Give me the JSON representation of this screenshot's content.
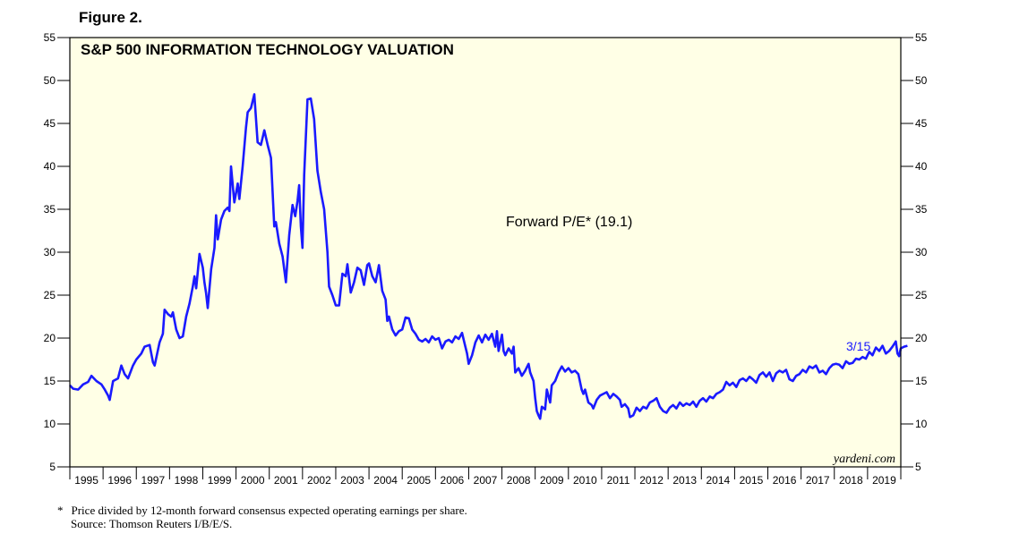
{
  "figure_label": "Figure 2.",
  "footnote": {
    "star": "*",
    "text": "Price divided by 12-month forward consensus expected operating earnings per share.",
    "source": "Source: Thomson Reuters I/B/E/S."
  },
  "colors": {
    "plot_bg": "#ffffe6",
    "line": "#1a1aff",
    "axis": "#000000"
  },
  "chart_data": {
    "type": "line",
    "title": "S&P 500 INFORMATION TECHNOLOGY VALUATION",
    "series_label": "Forward P/E* (19.1)",
    "end_label": "3/15",
    "watermark": "yardeni.com",
    "ylim": [
      5,
      55
    ],
    "yticks": [
      "5",
      "10",
      "15",
      "20",
      "25",
      "30",
      "35",
      "40",
      "45",
      "50",
      "55"
    ],
    "xlim": [
      1995,
      2020
    ],
    "xlabels": [
      "1995",
      "1996",
      "1997",
      "1998",
      "1999",
      "2000",
      "2001",
      "2002",
      "2003",
      "2004",
      "2005",
      "2006",
      "2007",
      "2008",
      "2009",
      "2010",
      "2011",
      "2012",
      "2013",
      "2014",
      "2015",
      "2016",
      "2017",
      "2018",
      "2019"
    ],
    "series": [
      {
        "name": "Forward P/E",
        "points": [
          [
            1995.0,
            14.5
          ],
          [
            1995.1,
            14.1
          ],
          [
            1995.25,
            14.0
          ],
          [
            1995.4,
            14.6
          ],
          [
            1995.55,
            14.9
          ],
          [
            1995.65,
            15.6
          ],
          [
            1995.8,
            15.0
          ],
          [
            1995.95,
            14.6
          ],
          [
            1996.05,
            14.0
          ],
          [
            1996.15,
            13.3
          ],
          [
            1996.2,
            12.8
          ],
          [
            1996.3,
            15.0
          ],
          [
            1996.45,
            15.3
          ],
          [
            1996.55,
            16.8
          ],
          [
            1996.65,
            15.8
          ],
          [
            1996.75,
            15.3
          ],
          [
            1996.9,
            16.8
          ],
          [
            1997.0,
            17.5
          ],
          [
            1997.15,
            18.2
          ],
          [
            1997.25,
            19.0
          ],
          [
            1997.4,
            19.2
          ],
          [
            1997.5,
            17.2
          ],
          [
            1997.55,
            16.8
          ],
          [
            1997.7,
            19.5
          ],
          [
            1997.8,
            20.5
          ],
          [
            1997.85,
            23.3
          ],
          [
            1997.95,
            22.8
          ],
          [
            1998.05,
            22.5
          ],
          [
            1998.1,
            23.0
          ],
          [
            1998.2,
            21.0
          ],
          [
            1998.3,
            20.0
          ],
          [
            1998.4,
            20.2
          ],
          [
            1998.5,
            22.5
          ],
          [
            1998.6,
            24.0
          ],
          [
            1998.7,
            26.0
          ],
          [
            1998.75,
            27.2
          ],
          [
            1998.8,
            25.8
          ],
          [
            1998.9,
            29.8
          ],
          [
            1999.0,
            28.2
          ],
          [
            1999.05,
            26.5
          ],
          [
            1999.1,
            25.2
          ],
          [
            1999.15,
            23.5
          ],
          [
            1999.25,
            28.0
          ],
          [
            1999.35,
            30.5
          ],
          [
            1999.4,
            34.3
          ],
          [
            1999.45,
            31.5
          ],
          [
            1999.55,
            33.8
          ],
          [
            1999.65,
            34.8
          ],
          [
            1999.75,
            35.2
          ],
          [
            1999.8,
            34.8
          ],
          [
            1999.85,
            40.0
          ],
          [
            1999.95,
            35.8
          ],
          [
            2000.05,
            38.0
          ],
          [
            2000.1,
            36.2
          ],
          [
            2000.2,
            40.0
          ],
          [
            2000.3,
            44.5
          ],
          [
            2000.35,
            46.3
          ],
          [
            2000.45,
            46.8
          ],
          [
            2000.55,
            48.4
          ],
          [
            2000.65,
            42.8
          ],
          [
            2000.75,
            42.5
          ],
          [
            2000.85,
            44.2
          ],
          [
            2000.95,
            42.5
          ],
          [
            2001.05,
            41.0
          ],
          [
            2001.15,
            33.0
          ],
          [
            2001.2,
            33.5
          ],
          [
            2001.3,
            31.0
          ],
          [
            2001.4,
            29.5
          ],
          [
            2001.5,
            26.5
          ],
          [
            2001.6,
            32.0
          ],
          [
            2001.7,
            35.5
          ],
          [
            2001.78,
            34.2
          ],
          [
            2001.85,
            36.0
          ],
          [
            2001.9,
            37.8
          ],
          [
            2001.95,
            33.0
          ],
          [
            2002.0,
            30.5
          ],
          [
            2002.05,
            39.0
          ],
          [
            2002.15,
            47.8
          ],
          [
            2002.25,
            47.9
          ],
          [
            2002.35,
            45.5
          ],
          [
            2002.45,
            39.5
          ],
          [
            2002.55,
            37.0
          ],
          [
            2002.65,
            35.0
          ],
          [
            2002.75,
            30.0
          ],
          [
            2002.8,
            26.0
          ],
          [
            2002.9,
            25.0
          ],
          [
            2003.0,
            23.8
          ],
          [
            2003.1,
            23.8
          ],
          [
            2003.2,
            27.5
          ],
          [
            2003.3,
            27.2
          ],
          [
            2003.35,
            28.6
          ],
          [
            2003.45,
            25.3
          ],
          [
            2003.55,
            26.5
          ],
          [
            2003.65,
            28.2
          ],
          [
            2003.75,
            27.9
          ],
          [
            2003.85,
            26.2
          ],
          [
            2003.95,
            28.5
          ],
          [
            2004.0,
            28.7
          ],
          [
            2004.1,
            27.2
          ],
          [
            2004.2,
            26.5
          ],
          [
            2004.3,
            28.5
          ],
          [
            2004.4,
            25.5
          ],
          [
            2004.5,
            24.5
          ],
          [
            2004.55,
            22.0
          ],
          [
            2004.6,
            22.5
          ],
          [
            2004.7,
            21.0
          ],
          [
            2004.8,
            20.3
          ],
          [
            2004.9,
            20.8
          ],
          [
            2005.0,
            21.0
          ],
          [
            2005.1,
            22.4
          ],
          [
            2005.2,
            22.3
          ],
          [
            2005.3,
            21.0
          ],
          [
            2005.4,
            20.5
          ],
          [
            2005.5,
            19.8
          ],
          [
            2005.6,
            19.6
          ],
          [
            2005.7,
            19.9
          ],
          [
            2005.8,
            19.5
          ],
          [
            2005.9,
            20.2
          ],
          [
            2006.0,
            19.8
          ],
          [
            2006.1,
            20.0
          ],
          [
            2006.2,
            18.8
          ],
          [
            2006.3,
            19.6
          ],
          [
            2006.4,
            19.8
          ],
          [
            2006.5,
            19.5
          ],
          [
            2006.6,
            20.2
          ],
          [
            2006.7,
            19.9
          ],
          [
            2006.8,
            20.6
          ],
          [
            2006.9,
            19.0
          ],
          [
            2006.95,
            18.2
          ],
          [
            2007.0,
            17.0
          ],
          [
            2007.1,
            18.0
          ],
          [
            2007.2,
            19.5
          ],
          [
            2007.3,
            20.3
          ],
          [
            2007.4,
            19.5
          ],
          [
            2007.5,
            20.4
          ],
          [
            2007.6,
            19.8
          ],
          [
            2007.7,
            20.5
          ],
          [
            2007.8,
            19.0
          ],
          [
            2007.85,
            20.8
          ],
          [
            2007.9,
            18.5
          ],
          [
            2007.95,
            19.5
          ],
          [
            2008.0,
            20.4
          ],
          [
            2008.05,
            18.5
          ],
          [
            2008.1,
            18.0
          ],
          [
            2008.2,
            18.8
          ],
          [
            2008.3,
            18.2
          ],
          [
            2008.35,
            19.0
          ],
          [
            2008.4,
            16.0
          ],
          [
            2008.5,
            16.5
          ],
          [
            2008.6,
            15.6
          ],
          [
            2008.7,
            16.2
          ],
          [
            2008.8,
            17.0
          ],
          [
            2008.85,
            16.0
          ],
          [
            2008.95,
            15.0
          ],
          [
            2009.0,
            13.0
          ],
          [
            2009.05,
            11.5
          ],
          [
            2009.1,
            11.0
          ],
          [
            2009.15,
            10.6
          ],
          [
            2009.2,
            12.0
          ],
          [
            2009.3,
            11.7
          ],
          [
            2009.35,
            14.0
          ],
          [
            2009.45,
            12.5
          ],
          [
            2009.5,
            14.5
          ],
          [
            2009.6,
            15.0
          ],
          [
            2009.7,
            16.0
          ],
          [
            2009.8,
            16.7
          ],
          [
            2009.9,
            16.1
          ],
          [
            2010.0,
            16.5
          ],
          [
            2010.1,
            16.0
          ],
          [
            2010.2,
            16.2
          ],
          [
            2010.3,
            15.8
          ],
          [
            2010.4,
            14.0
          ],
          [
            2010.45,
            13.5
          ],
          [
            2010.5,
            14.0
          ],
          [
            2010.6,
            12.5
          ],
          [
            2010.7,
            12.2
          ],
          [
            2010.75,
            11.8
          ],
          [
            2010.85,
            12.8
          ],
          [
            2010.95,
            13.3
          ],
          [
            2011.05,
            13.5
          ],
          [
            2011.15,
            13.7
          ],
          [
            2011.25,
            13.0
          ],
          [
            2011.35,
            13.5
          ],
          [
            2011.45,
            13.2
          ],
          [
            2011.55,
            12.8
          ],
          [
            2011.6,
            12.0
          ],
          [
            2011.7,
            12.3
          ],
          [
            2011.8,
            11.8
          ],
          [
            2011.85,
            10.8
          ],
          [
            2011.95,
            11.0
          ],
          [
            2012.05,
            11.9
          ],
          [
            2012.15,
            11.5
          ],
          [
            2012.25,
            12.0
          ],
          [
            2012.35,
            11.8
          ],
          [
            2012.45,
            12.5
          ],
          [
            2012.55,
            12.7
          ],
          [
            2012.65,
            13.0
          ],
          [
            2012.75,
            12.0
          ],
          [
            2012.85,
            11.5
          ],
          [
            2012.95,
            11.3
          ],
          [
            2013.05,
            11.9
          ],
          [
            2013.15,
            12.2
          ],
          [
            2013.25,
            11.8
          ],
          [
            2013.35,
            12.5
          ],
          [
            2013.45,
            12.1
          ],
          [
            2013.55,
            12.4
          ],
          [
            2013.65,
            12.2
          ],
          [
            2013.75,
            12.6
          ],
          [
            2013.85,
            12.0
          ],
          [
            2013.95,
            12.7
          ],
          [
            2014.05,
            13.0
          ],
          [
            2014.15,
            12.6
          ],
          [
            2014.25,
            13.2
          ],
          [
            2014.35,
            13.0
          ],
          [
            2014.45,
            13.5
          ],
          [
            2014.55,
            13.7
          ],
          [
            2014.65,
            14.0
          ],
          [
            2014.75,
            14.9
          ],
          [
            2014.85,
            14.5
          ],
          [
            2014.95,
            14.8
          ],
          [
            2015.05,
            14.3
          ],
          [
            2015.15,
            15.1
          ],
          [
            2015.25,
            15.3
          ],
          [
            2015.35,
            15.0
          ],
          [
            2015.45,
            15.5
          ],
          [
            2015.55,
            15.2
          ],
          [
            2015.65,
            14.8
          ],
          [
            2015.75,
            15.7
          ],
          [
            2015.85,
            16.0
          ],
          [
            2015.95,
            15.5
          ],
          [
            2016.05,
            16.0
          ],
          [
            2016.15,
            15.0
          ],
          [
            2016.25,
            15.9
          ],
          [
            2016.35,
            16.2
          ],
          [
            2016.45,
            16.0
          ],
          [
            2016.55,
            16.3
          ],
          [
            2016.65,
            15.2
          ],
          [
            2016.75,
            15.0
          ],
          [
            2016.85,
            15.6
          ],
          [
            2016.95,
            15.8
          ],
          [
            2017.05,
            16.3
          ],
          [
            2017.15,
            16.0
          ],
          [
            2017.25,
            16.7
          ],
          [
            2017.35,
            16.5
          ],
          [
            2017.45,
            16.8
          ],
          [
            2017.55,
            16.0
          ],
          [
            2017.65,
            16.2
          ],
          [
            2017.75,
            15.8
          ],
          [
            2017.85,
            16.5
          ],
          [
            2017.95,
            16.9
          ],
          [
            2018.05,
            17.0
          ],
          [
            2018.15,
            16.9
          ],
          [
            2018.25,
            16.5
          ],
          [
            2018.35,
            17.3
          ],
          [
            2018.45,
            17.0
          ],
          [
            2018.55,
            17.1
          ],
          [
            2018.65,
            17.6
          ],
          [
            2018.75,
            17.5
          ],
          [
            2018.85,
            17.8
          ],
          [
            2018.95,
            17.6
          ],
          [
            2019.05,
            18.4
          ],
          [
            2019.15,
            18.0
          ],
          [
            2019.25,
            18.9
          ],
          [
            2019.35,
            18.5
          ],
          [
            2019.45,
            19.1
          ],
          [
            2019.55,
            18.2
          ],
          [
            2019.65,
            18.5
          ],
          [
            2019.75,
            19.0
          ],
          [
            2019.85,
            19.6
          ],
          [
            2019.9,
            18.2
          ],
          [
            2019.95,
            17.9
          ],
          [
            2020.0,
            18.8
          ],
          [
            2020.1,
            19.0
          ],
          [
            2020.2,
            19.1
          ]
        ]
      }
    ]
  }
}
